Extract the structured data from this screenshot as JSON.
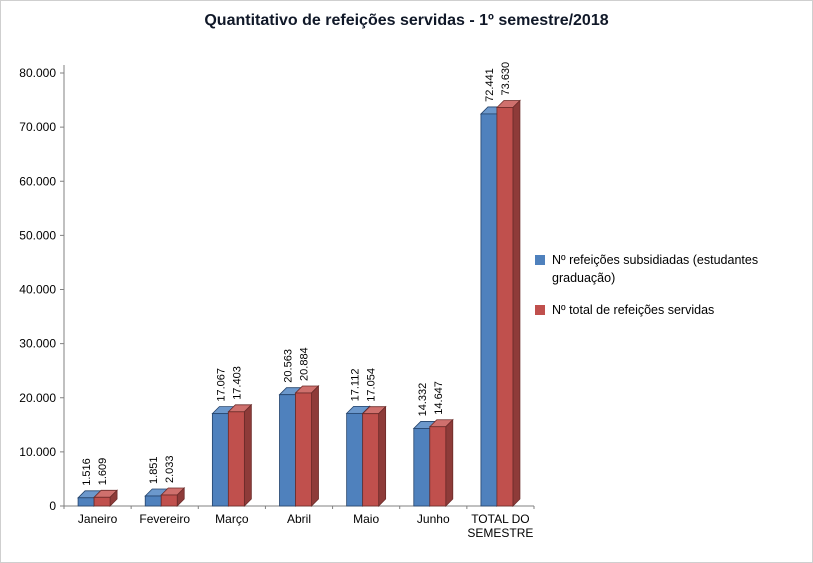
{
  "colors": {
    "title": "#101828",
    "axis_line": "#808080",
    "text": "#000000",
    "frame_border": "#cfcfcf"
  },
  "chart_data": {
    "type": "bar",
    "style": "3d-clustered-column",
    "title": "Quantitativo de refeições servidas - 1º semestre/2018",
    "categories": [
      "Janeiro",
      "Fevereiro",
      "Março",
      "Abril",
      "Maio",
      "Junho",
      "TOTAL DO SEMESTRE"
    ],
    "series": [
      {
        "name": "Nº refeições subsidiadas (estudantes graduação)",
        "color": "#4f81bd",
        "color_top": "#6c98cc",
        "color_side": "#365d8d",
        "color_outline": "#24436b",
        "values": [
          1516,
          1851,
          17067,
          20563,
          17112,
          14332,
          72441
        ],
        "labels": [
          "1.516",
          "1.851",
          "17.067",
          "20.563",
          "17.112",
          "14.332",
          "72.441"
        ]
      },
      {
        "name": "Nº total de refeições servidas",
        "color": "#c0504d",
        "color_top": "#cf706d",
        "color_side": "#8e3b39",
        "color_outline": "#6b2b29",
        "values": [
          1609,
          2033,
          17403,
          20884,
          17054,
          14647,
          73630
        ],
        "labels": [
          "1.609",
          "2.033",
          "17.403",
          "20.884",
          "17.054",
          "14.647",
          "73.630"
        ]
      }
    ],
    "ylim": [
      0,
      80000
    ],
    "yticks": [
      0,
      10000,
      20000,
      30000,
      40000,
      50000,
      60000,
      70000,
      80000
    ],
    "ytick_labels": [
      "0",
      "10.000",
      "20.000",
      "30.000",
      "40.000",
      "50.000",
      "60.000",
      "70.000",
      "80.000"
    ],
    "grid": false,
    "legend_position": "right",
    "data_labels": "rotated-90-above-bars"
  }
}
